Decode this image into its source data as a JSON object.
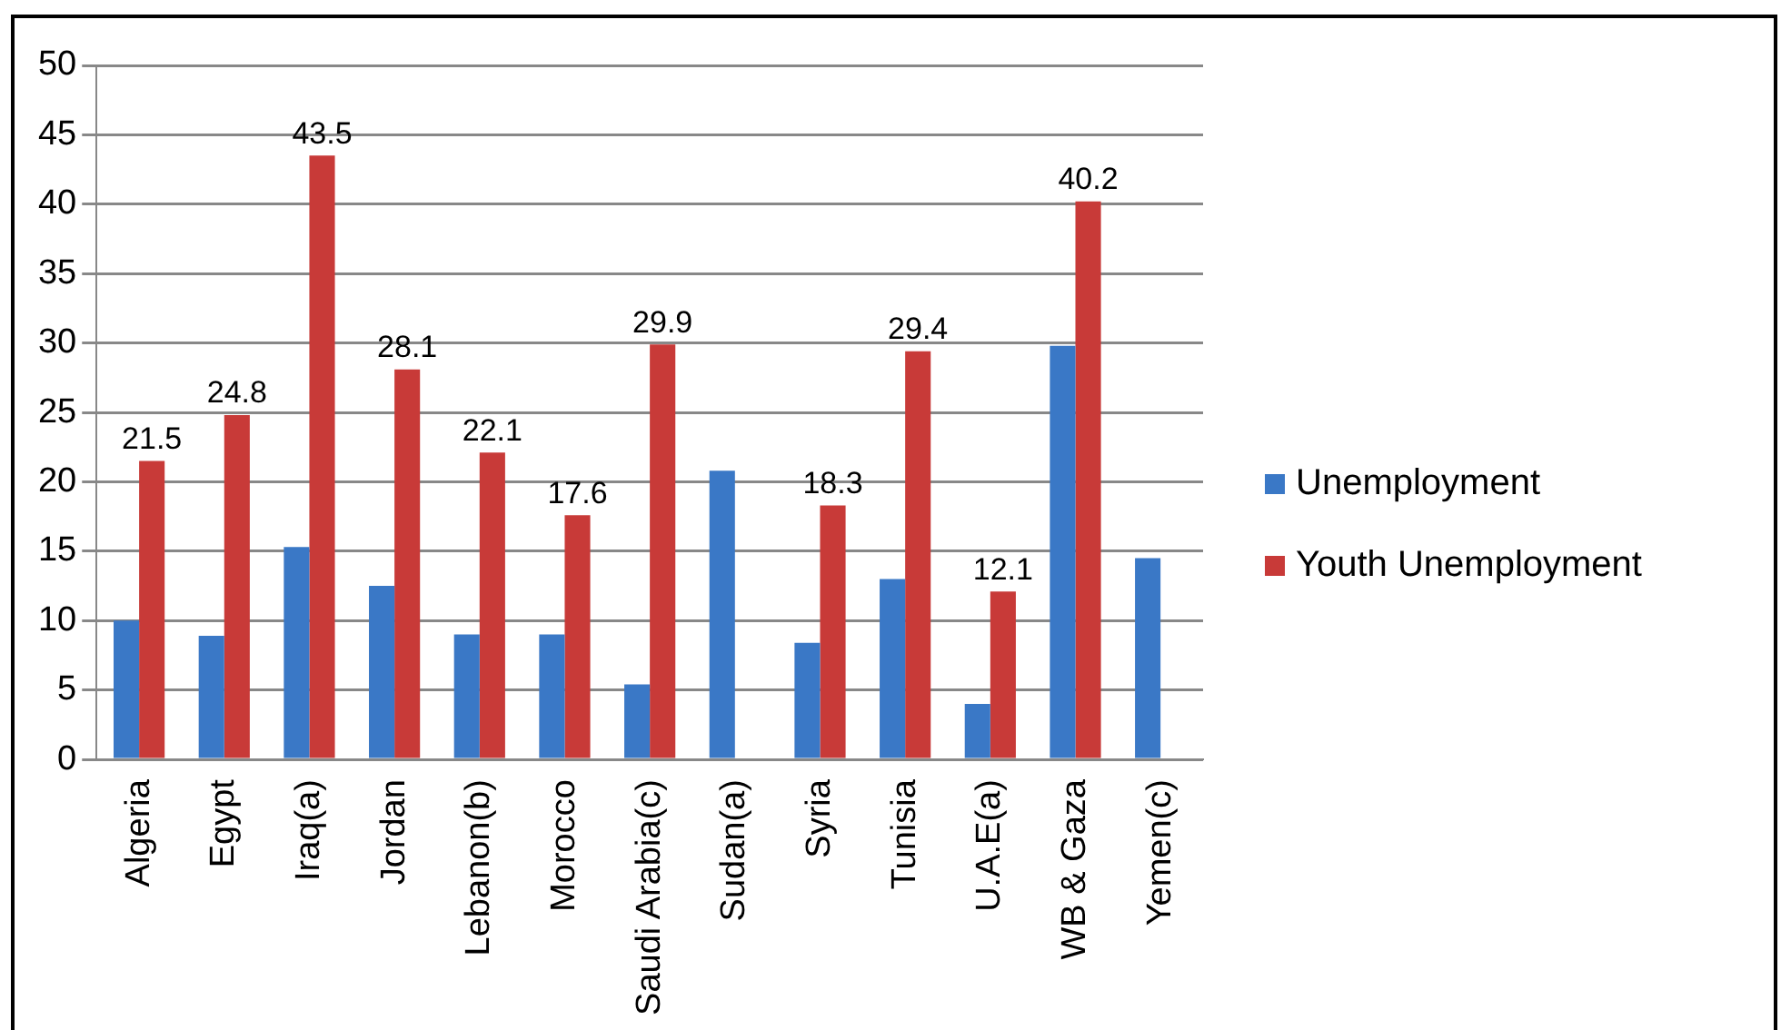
{
  "chart_data": {
    "type": "bar",
    "categories": [
      "Algeria",
      "Egypt",
      "Iraq(a)",
      "Jordan",
      "Lebanon(b)",
      "Morocco",
      "Saudi Arabia(c)",
      "Sudan(a)",
      "Syria",
      "Tunisia",
      "U.A.E(a)",
      "WB & Gaza",
      "Yemen(c)"
    ],
    "series": [
      {
        "name": "Unemployment",
        "color": "#3a78c6",
        "values": [
          10.0,
          8.9,
          15.3,
          12.5,
          9.0,
          9.0,
          5.4,
          20.8,
          8.4,
          13.0,
          4.0,
          29.8,
          14.5
        ]
      },
      {
        "name": "Youth Unemployment",
        "color": "#c83a38",
        "values": [
          21.5,
          24.8,
          43.5,
          28.1,
          22.1,
          17.6,
          29.9,
          null,
          18.3,
          29.4,
          12.1,
          40.2,
          null
        ],
        "value_labels": [
          "21.5",
          "24.8",
          "43.5",
          "28.1",
          "22.1",
          "17.6",
          "29.9",
          null,
          "18.3",
          "29.4",
          "12.1",
          "40.2",
          null
        ]
      }
    ],
    "ylim": [
      0,
      50
    ],
    "yticks": [
      0,
      5,
      10,
      15,
      20,
      25,
      30,
      35,
      40,
      45,
      50
    ],
    "grid": "y",
    "legend": "right"
  }
}
